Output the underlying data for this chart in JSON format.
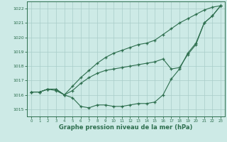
{
  "x": [
    0,
    1,
    2,
    3,
    4,
    5,
    6,
    7,
    8,
    9,
    10,
    11,
    12,
    13,
    14,
    15,
    16,
    17,
    18,
    19,
    20,
    21,
    22,
    23
  ],
  "line1": [
    1016.2,
    1016.2,
    1016.4,
    1016.3,
    1016.0,
    1015.8,
    1015.2,
    1015.1,
    1015.3,
    1015.3,
    1015.2,
    1015.2,
    1015.3,
    1015.4,
    1015.4,
    1015.5,
    1016.0,
    1017.1,
    1017.8,
    1018.9,
    1019.6,
    1021.0,
    1021.5,
    1022.2
  ],
  "line2": [
    1016.2,
    1016.2,
    1016.4,
    1016.4,
    1016.0,
    1016.3,
    1016.8,
    1017.2,
    1017.5,
    1017.7,
    1017.8,
    1017.9,
    1018.0,
    1018.1,
    1018.2,
    1018.3,
    1018.5,
    1017.8,
    1017.9,
    1018.8,
    1019.5,
    1021.0,
    1021.5,
    1022.2
  ],
  "line3": [
    1016.2,
    1016.2,
    1016.4,
    1016.4,
    1016.0,
    1016.6,
    1017.2,
    1017.7,
    1018.2,
    1018.6,
    1018.9,
    1019.1,
    1019.3,
    1019.5,
    1019.6,
    1019.8,
    1020.2,
    1020.6,
    1021.0,
    1021.3,
    1021.6,
    1021.9,
    1022.1,
    1022.2
  ],
  "background_color": "#cdeae6",
  "grid_color": "#a8cdc9",
  "line_color": "#2d6e4e",
  "xlabel": "Graphe pression niveau de la mer (hPa)",
  "ylim": [
    1014.5,
    1022.5
  ],
  "yticks": [
    1015,
    1016,
    1017,
    1018,
    1019,
    1020,
    1021,
    1022
  ],
  "xticks": [
    0,
    1,
    2,
    3,
    4,
    5,
    6,
    7,
    8,
    9,
    10,
    11,
    12,
    13,
    14,
    15,
    16,
    17,
    18,
    19,
    20,
    21,
    22,
    23
  ]
}
